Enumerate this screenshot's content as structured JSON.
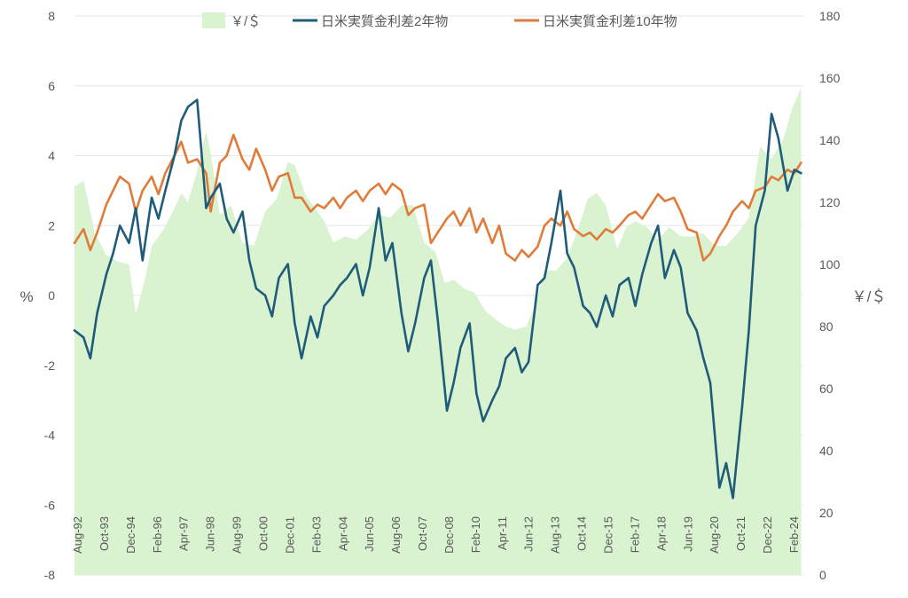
{
  "chart_data": {
    "type": "line",
    "title": "",
    "ylabel_left": "%",
    "ylabel_right": "￥/＄",
    "ylim_left": [
      -8,
      8
    ],
    "ylim_right": [
      0,
      180
    ],
    "left_ticks": [
      8,
      6,
      4,
      2,
      0,
      -2,
      -4,
      -6,
      -8
    ],
    "right_ticks": [
      180,
      160,
      140,
      120,
      100,
      80,
      60,
      40,
      20,
      0
    ],
    "x_tick_labels": [
      "Aug-92",
      "Oct-93",
      "Dec-94",
      "Feb-96",
      "Apr-97",
      "Jun-98",
      "Aug-99",
      "Oct-00",
      "Dec-01",
      "Feb-03",
      "Apr-04",
      "Jun-05",
      "Aug-06",
      "Oct-07",
      "Dec-08",
      "Feb-10",
      "Apr-11",
      "Jun-12",
      "Aug-13",
      "Oct-14",
      "Dec-15",
      "Feb-17",
      "Apr-18",
      "Jun-19",
      "Aug-20",
      "Oct-21",
      "Dec-22",
      "Feb-24"
    ],
    "x_range": [
      "1992-08",
      "2024-08"
    ],
    "legend": [
      "￥/＄",
      "日米実質金利差2年物",
      "日米実質金利差10年物"
    ],
    "colors": {
      "area": "#d9f2d0",
      "line2y": "#1f5c7a",
      "line10y": "#e07b39",
      "grid": "#e6e6e6",
      "text": "#595959"
    },
    "series": [
      {
        "name": "￥/＄",
        "axis": "right",
        "kind": "area",
        "x": [
          1992.6,
          1993.0,
          1993.5,
          1994.0,
          1994.5,
          1995.0,
          1995.3,
          1995.7,
          1996.0,
          1996.5,
          1997.0,
          1997.3,
          1997.6,
          1998.0,
          1998.4,
          1998.6,
          1999.0,
          1999.5,
          2000.0,
          2000.5,
          2001.0,
          2001.5,
          2002.0,
          2002.3,
          2002.8,
          2003.2,
          2003.6,
          2004.0,
          2004.5,
          2005.0,
          2005.5,
          2006.0,
          2006.5,
          2007.0,
          2007.5,
          2008.0,
          2008.5,
          2008.9,
          2009.3,
          2009.8,
          2010.2,
          2010.7,
          2011.2,
          2011.6,
          2012.0,
          2012.5,
          2012.9,
          2013.3,
          2013.8,
          2014.3,
          2014.8,
          2015.2,
          2015.6,
          2016.0,
          2016.5,
          2016.9,
          2017.3,
          2017.8,
          2018.3,
          2018.8,
          2019.3,
          2019.8,
          2020.3,
          2020.8,
          2021.3,
          2021.8,
          2022.3,
          2022.8,
          2023.3,
          2023.8,
          2024.2,
          2024.6
        ],
        "values": [
          125,
          127,
          110,
          103,
          101,
          100,
          84,
          95,
          106,
          111,
          118,
          123,
          120,
          130,
          143,
          136,
          116,
          119,
          107,
          106,
          117,
          121,
          133,
          132,
          122,
          118,
          114,
          107,
          109,
          108,
          111,
          116,
          115,
          119,
          119,
          107,
          104,
          94,
          95,
          92,
          91,
          85,
          82,
          80,
          79,
          80,
          87,
          98,
          98,
          102,
          112,
          121,
          123,
          119,
          105,
          112,
          114,
          112,
          108,
          112,
          109,
          109,
          110,
          106,
          106,
          110,
          115,
          138,
          134,
          140,
          150,
          157
        ]
      },
      {
        "name": "日米実質金利差2年物",
        "axis": "left",
        "kind": "line",
        "x": [
          1992.6,
          1993.0,
          1993.3,
          1993.6,
          1994.0,
          1994.3,
          1994.6,
          1995.0,
          1995.3,
          1995.6,
          1996.0,
          1996.3,
          1996.6,
          1997.0,
          1997.3,
          1997.6,
          1998.0,
          1998.4,
          1998.6,
          1999.0,
          1999.3,
          1999.6,
          2000.0,
          2000.3,
          2000.6,
          2001.0,
          2001.3,
          2001.6,
          2002.0,
          2002.3,
          2002.6,
          2003.0,
          2003.3,
          2003.6,
          2004.0,
          2004.3,
          2004.6,
          2005.0,
          2005.3,
          2005.6,
          2006.0,
          2006.3,
          2006.6,
          2007.0,
          2007.3,
          2007.6,
          2008.0,
          2008.3,
          2008.6,
          2009.0,
          2009.3,
          2009.6,
          2010.0,
          2010.3,
          2010.6,
          2011.0,
          2011.3,
          2011.6,
          2012.0,
          2012.3,
          2012.6,
          2013.0,
          2013.3,
          2013.6,
          2014.0,
          2014.3,
          2014.6,
          2015.0,
          2015.3,
          2015.6,
          2016.0,
          2016.3,
          2016.6,
          2017.0,
          2017.3,
          2017.6,
          2018.0,
          2018.3,
          2018.6,
          2019.0,
          2019.3,
          2019.6,
          2020.0,
          2020.3,
          2020.6,
          2021.0,
          2021.3,
          2021.6,
          2022.0,
          2022.3,
          2022.6,
          2023.0,
          2023.3,
          2023.6,
          2024.0,
          2024.3,
          2024.6
        ],
        "values": [
          -1.0,
          -1.2,
          -1.8,
          -0.5,
          0.6,
          1.2,
          2.0,
          1.5,
          2.5,
          1.0,
          2.8,
          2.2,
          3.0,
          4.0,
          5.0,
          5.4,
          5.6,
          2.5,
          2.8,
          3.2,
          2.2,
          1.8,
          2.4,
          1.0,
          0.2,
          0.0,
          -0.6,
          0.5,
          0.9,
          -0.8,
          -1.8,
          -0.6,
          -1.2,
          -0.3,
          0.0,
          0.3,
          0.5,
          0.9,
          0.0,
          0.8,
          2.5,
          1.0,
          1.5,
          -0.5,
          -1.6,
          -0.8,
          0.5,
          1.0,
          -0.7,
          -3.3,
          -2.5,
          -1.5,
          -0.8,
          -2.8,
          -3.6,
          -3.0,
          -2.6,
          -1.8,
          -1.5,
          -2.2,
          -1.9,
          0.3,
          0.5,
          1.5,
          3.0,
          1.2,
          0.8,
          -0.3,
          -0.5,
          -0.9,
          0.0,
          -0.6,
          0.3,
          0.5,
          -0.3,
          0.6,
          1.5,
          2.0,
          0.5,
          1.3,
          0.8,
          -0.5,
          -1.0,
          -1.8,
          -2.5,
          -5.5,
          -4.8,
          -5.8,
          -3.2,
          -1.0,
          2.0,
          3.0,
          5.2,
          4.5,
          3.0,
          3.6,
          3.5
        ]
      },
      {
        "name": "日米実質金利差10年物",
        "axis": "left",
        "kind": "line",
        "x": [
          1992.6,
          1993.0,
          1993.3,
          1993.6,
          1994.0,
          1994.3,
          1994.6,
          1995.0,
          1995.3,
          1995.6,
          1996.0,
          1996.3,
          1996.6,
          1997.0,
          1997.3,
          1997.6,
          1998.0,
          1998.4,
          1998.6,
          1999.0,
          1999.3,
          1999.6,
          2000.0,
          2000.3,
          2000.6,
          2001.0,
          2001.3,
          2001.6,
          2002.0,
          2002.3,
          2002.6,
          2003.0,
          2003.3,
          2003.6,
          2004.0,
          2004.3,
          2004.6,
          2005.0,
          2005.3,
          2005.6,
          2006.0,
          2006.3,
          2006.6,
          2007.0,
          2007.3,
          2007.6,
          2008.0,
          2008.3,
          2008.6,
          2009.0,
          2009.3,
          2009.6,
          2010.0,
          2010.3,
          2010.6,
          2011.0,
          2011.3,
          2011.6,
          2012.0,
          2012.3,
          2012.6,
          2013.0,
          2013.3,
          2013.6,
          2014.0,
          2014.3,
          2014.6,
          2015.0,
          2015.3,
          2015.6,
          2016.0,
          2016.3,
          2016.6,
          2017.0,
          2017.3,
          2017.6,
          2018.0,
          2018.3,
          2018.6,
          2019.0,
          2019.3,
          2019.6,
          2020.0,
          2020.3,
          2020.6,
          2021.0,
          2021.3,
          2021.6,
          2022.0,
          2022.3,
          2022.6,
          2023.0,
          2023.3,
          2023.6,
          2024.0,
          2024.3,
          2024.6
        ],
        "values": [
          1.5,
          1.9,
          1.3,
          1.8,
          2.6,
          3.0,
          3.4,
          3.2,
          2.4,
          3.0,
          3.4,
          2.9,
          3.5,
          4.0,
          4.4,
          3.8,
          3.9,
          3.5,
          2.4,
          3.8,
          4.0,
          4.6,
          3.9,
          3.6,
          4.2,
          3.6,
          3.0,
          3.4,
          3.5,
          2.8,
          2.8,
          2.4,
          2.6,
          2.5,
          2.8,
          2.5,
          2.8,
          3.0,
          2.7,
          3.0,
          3.2,
          2.9,
          3.2,
          3.0,
          2.3,
          2.5,
          2.6,
          1.5,
          1.8,
          2.2,
          2.4,
          2.0,
          2.5,
          1.8,
          2.2,
          1.5,
          2.0,
          1.2,
          1.0,
          1.3,
          1.1,
          1.4,
          2.0,
          2.2,
          2.0,
          2.4,
          1.9,
          1.7,
          1.8,
          1.6,
          1.9,
          1.8,
          2.0,
          2.3,
          2.4,
          2.2,
          2.6,
          2.9,
          2.7,
          2.8,
          2.4,
          1.9,
          1.8,
          1.0,
          1.2,
          1.7,
          2.0,
          2.4,
          2.7,
          2.5,
          3.0,
          3.1,
          3.4,
          3.3,
          3.6,
          3.5,
          3.8
        ]
      }
    ]
  }
}
